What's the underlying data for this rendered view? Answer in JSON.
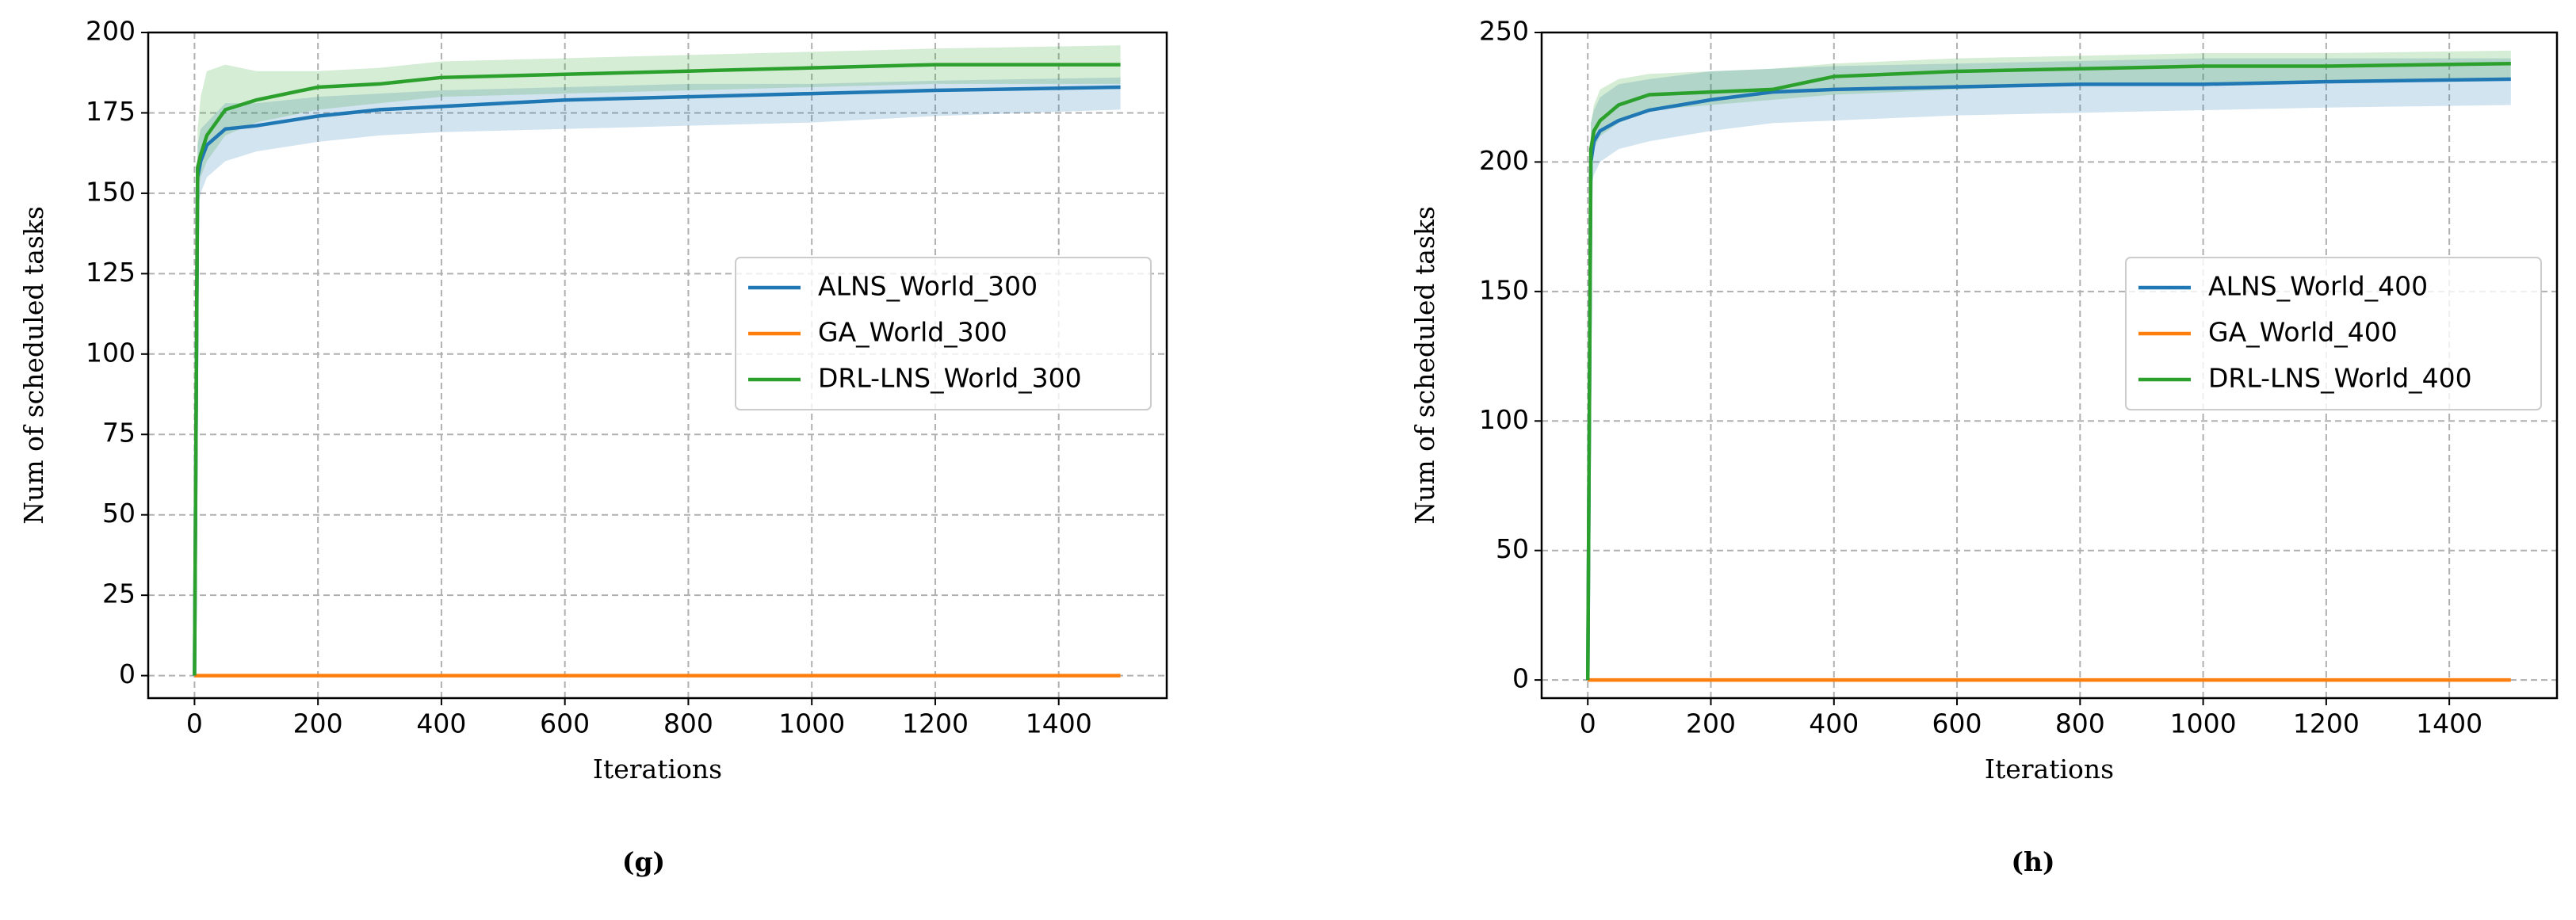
{
  "chart_data": [
    {
      "type": "line",
      "label": "(g)",
      "xlabel": "Iterations",
      "ylabel": "Num of scheduled tasks",
      "x": [
        0,
        5,
        10,
        20,
        50,
        100,
        200,
        300,
        400,
        600,
        800,
        1000,
        1200,
        1500
      ],
      "xlim": [
        -75,
        1575
      ],
      "xticks": [
        0,
        200,
        400,
        600,
        800,
        1000,
        1200,
        1400
      ],
      "ylim": [
        -7,
        200
      ],
      "yticks": [
        0,
        25,
        50,
        75,
        100,
        125,
        150,
        175,
        200
      ],
      "grid": true,
      "legend": "center right",
      "series": [
        {
          "name": "ALNS_World_300",
          "color": "#1f77b4",
          "values": [
            0,
            155,
            160,
            165,
            170,
            171,
            174,
            176,
            177,
            179,
            180,
            181,
            182,
            183
          ],
          "lower": [
            0,
            145,
            150,
            155,
            160,
            163,
            166,
            168,
            169,
            170,
            171,
            172,
            174,
            176
          ],
          "upper": [
            0,
            165,
            170,
            172,
            178,
            178,
            180,
            181,
            182,
            183,
            184,
            184,
            185,
            186
          ]
        },
        {
          "name": "GA_World_300",
          "color": "#ff7f0e",
          "values": [
            0,
            0,
            0,
            0,
            0,
            0,
            0,
            0,
            0,
            0,
            0,
            0,
            0,
            0
          ]
        },
        {
          "name": "DRL-LNS_World_300",
          "color": "#2ca02c",
          "values": [
            0,
            158,
            162,
            168,
            176,
            179,
            183,
            184,
            186,
            187,
            188,
            189,
            190,
            190
          ],
          "lower": [
            0,
            150,
            155,
            160,
            168,
            172,
            176,
            178,
            180,
            181,
            182,
            183,
            184,
            184
          ],
          "upper": [
            0,
            170,
            180,
            188,
            190,
            188,
            188,
            189,
            191,
            192,
            193,
            194,
            195,
            196
          ]
        }
      ]
    },
    {
      "type": "line",
      "label": "(h)",
      "xlabel": "Iterations",
      "ylabel": "Num of scheduled tasks",
      "x": [
        0,
        5,
        10,
        20,
        50,
        100,
        200,
        300,
        400,
        600,
        800,
        1000,
        1200,
        1500
      ],
      "xlim": [
        -75,
        1575
      ],
      "xticks": [
        0,
        200,
        400,
        600,
        800,
        1000,
        1200,
        1400
      ],
      "ylim": [
        -7,
        250
      ],
      "yticks": [
        0,
        50,
        100,
        150,
        200,
        250
      ],
      "grid": true,
      "legend": "center right",
      "series": [
        {
          "name": "ALNS_World_400",
          "color": "#1f77b4",
          "values": [
            0,
            200,
            208,
            212,
            216,
            220,
            224,
            227,
            228,
            229,
            230,
            230,
            231,
            232
          ],
          "lower": [
            0,
            190,
            195,
            200,
            205,
            208,
            212,
            215,
            216,
            218,
            219,
            220,
            221,
            222
          ],
          "upper": [
            0,
            215,
            220,
            225,
            230,
            232,
            235,
            236,
            237,
            238,
            239,
            240,
            240,
            240
          ]
        },
        {
          "name": "GA_World_400",
          "color": "#ff7f0e",
          "values": [
            0,
            0,
            0,
            0,
            0,
            0,
            0,
            0,
            0,
            0,
            0,
            0,
            0,
            0
          ]
        },
        {
          "name": "DRL-LNS_World_400",
          "color": "#2ca02c",
          "values": [
            0,
            205,
            212,
            216,
            222,
            226,
            227,
            228,
            233,
            235,
            236,
            237,
            237,
            238
          ],
          "lower": [
            0,
            200,
            205,
            210,
            215,
            220,
            222,
            224,
            226,
            228,
            230,
            230,
            231,
            232
          ],
          "upper": [
            0,
            215,
            222,
            228,
            232,
            234,
            235,
            236,
            238,
            240,
            241,
            242,
            242,
            243
          ]
        }
      ]
    }
  ]
}
